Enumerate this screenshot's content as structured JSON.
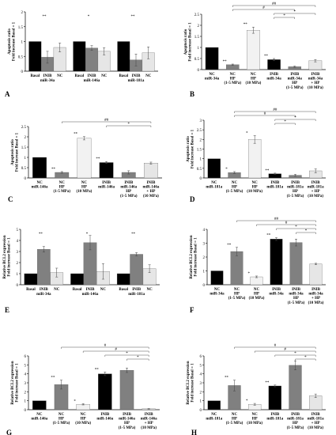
{
  "colors": {
    "black": "#000000",
    "dark": "#808080",
    "mid": "#bdbdbd",
    "light": "#e6e6e6",
    "verylight": "#f2f2f2"
  },
  "panels": [
    {
      "letter": "A",
      "ylabel": [
        "Apoptosis ratio",
        "Fold increase Basal = 1"
      ],
      "chart_data": {
        "type": "bar",
        "ylim": [
          0,
          2
        ],
        "ticks": [
          0,
          0.5,
          1,
          1.5,
          2
        ],
        "groups": [
          {
            "label": [
              "INIB",
              "miR-34a"
            ],
            "cats": [
              "Basal",
              "",
              "NC"
            ],
            "values": [
              1,
              0.47,
              0.8
            ],
            "errs": [
              0,
              0.2,
              0.15
            ],
            "colors": [
              "black",
              "dark",
              "light"
            ],
            "marks": [
              "",
              "**",
              ""
            ]
          },
          {
            "label": [
              "INIB",
              "miR-146a"
            ],
            "cats": [
              "Basal",
              "",
              "NC"
            ],
            "values": [
              1,
              0.78,
              0.67
            ],
            "errs": [
              0,
              0.08,
              0.12
            ],
            "colors": [
              "black",
              "dark",
              "light"
            ],
            "marks": [
              "",
              "*",
              ""
            ]
          },
          {
            "label": [
              "INIB",
              "miR-181a"
            ],
            "cats": [
              "Basal",
              "",
              "NC"
            ],
            "values": [
              1,
              0.38,
              0.62
            ],
            "errs": [
              0,
              0.2,
              0.2
            ],
            "colors": [
              "black",
              "dark",
              "light"
            ],
            "marks": [
              "",
              "**",
              ""
            ]
          }
        ]
      }
    },
    {
      "letter": "B",
      "ylabel": [
        "Apoptosis ratio",
        "Fold increase Basal = 1"
      ],
      "chart_data": {
        "type": "bar",
        "ylim": [
          0,
          2.5
        ],
        "ticks": [
          0,
          0.5,
          1,
          1.5,
          2,
          2.5
        ],
        "categories": [
          [
            "NC",
            "miR-34a"
          ],
          [
            "NC",
            "HP",
            "(1-5 MPa)"
          ],
          [
            "NC",
            "HP",
            "(10 MPa)"
          ],
          [
            "INIB",
            "miR-34a"
          ],
          [
            "INIB",
            "miR-34a",
            "HP",
            "(1-5 MPa)"
          ],
          [
            "INIB",
            "miR-34a",
            "+ HP",
            "(10 MPa)"
          ]
        ],
        "values": [
          1,
          0.22,
          1.78,
          0.45,
          0.13,
          0.4
        ],
        "errs": [
          0,
          0.03,
          0.14,
          0.05,
          0.03,
          0.05
        ],
        "colors": [
          "black",
          "dark",
          "verylight",
          "black",
          "dark",
          "light"
        ],
        "marks": [
          "",
          "**",
          "**",
          "**",
          "",
          ""
        ],
        "brackets": [
          {
            "from": 1,
            "to": 5,
            "level": 2,
            "sym": "##"
          },
          {
            "from": 1,
            "to": 4,
            "level": 1,
            "sym": "#"
          },
          {
            "from": 3,
            "to": 5,
            "level": 0,
            "sym": "*"
          },
          {
            "from": 3,
            "to": 4,
            "level": -1,
            "sym": "*"
          }
        ]
      }
    },
    {
      "letter": "C",
      "ylabel": [
        "Apoptosis ratio",
        "Fold increase Basal = 1"
      ],
      "chart_data": {
        "type": "bar",
        "ylim": [
          0,
          2.5
        ],
        "ticks": [
          0,
          0.5,
          1,
          1.5,
          2,
          2.5
        ],
        "categories": [
          [
            "NC",
            "miR-146a"
          ],
          [
            "NC",
            "HP",
            "(1-5 MPa)"
          ],
          [
            "NC",
            "HP",
            "(10 MPa)"
          ],
          [
            "INIB",
            "miR-146a"
          ],
          [
            "INIB",
            "miR-146a",
            "HP",
            "(1-5 MPa)"
          ],
          [
            "INIB",
            "miR-146a",
            "+ HP",
            "(10 MPa)"
          ]
        ],
        "values": [
          1,
          0.27,
          1.93,
          0.75,
          0.27,
          0.72
        ],
        "errs": [
          0,
          0.04,
          0.08,
          0.05,
          0.08,
          0.05
        ],
        "colors": [
          "black",
          "dark",
          "verylight",
          "black",
          "dark",
          "light"
        ],
        "marks": [
          "",
          "**",
          "**",
          "**",
          "",
          ""
        ],
        "brackets": [
          {
            "from": 1,
            "to": 5,
            "level": 1,
            "sym": "##"
          },
          {
            "from": 3,
            "to": 5,
            "level": 0,
            "sym": "*"
          }
        ]
      }
    },
    {
      "letter": "D",
      "ylabel": [
        "Apoptosis ratio",
        "Fold increase Basal = 1"
      ],
      "chart_data": {
        "type": "bar",
        "ylim": [
          0,
          3
        ],
        "ticks": [
          0,
          0.5,
          1,
          1.5,
          2,
          2.5,
          3
        ],
        "categories": [
          [
            "NC",
            "miR-181a"
          ],
          [
            "NC",
            "HP",
            "(1-5 MPa)"
          ],
          [
            "NC",
            "HP",
            "(10 MPa)"
          ],
          [
            "INIB",
            "miR-181a"
          ],
          [
            "INIB",
            "miR-181a",
            "HP",
            "(1-5 MPa)"
          ],
          [
            "INIB",
            "miR-181a",
            "+ HP",
            "(10 MPa)"
          ]
        ],
        "values": [
          1,
          0.28,
          2.0,
          0.22,
          0.14,
          0.37
        ],
        "errs": [
          0,
          0.05,
          0.2,
          0.03,
          0.05,
          0.1
        ],
        "colors": [
          "black",
          "dark",
          "verylight",
          "black",
          "dark",
          "light"
        ],
        "marks": [
          "",
          "*",
          "*",
          "**",
          "",
          ""
        ],
        "brackets": [
          {
            "from": 1,
            "to": 5,
            "level": 2,
            "sym": "##"
          },
          {
            "from": 1,
            "to": 4,
            "level": 1,
            "sym": "#"
          },
          {
            "from": 3,
            "to": 5,
            "level": 0,
            "sym": "*"
          },
          {
            "from": 3,
            "to": 4,
            "level": -1,
            "sym": "*"
          }
        ]
      }
    },
    {
      "letter": "E",
      "ylabel": [
        "Relative BCL2 expression",
        "Fold increase Basal = 1"
      ],
      "chart_data": {
        "type": "bar",
        "ylim": [
          0,
          5
        ],
        "ticks": [
          0,
          1,
          2,
          3,
          4,
          5
        ],
        "groups": [
          {
            "label": [
              "INIB",
              "miR-34a"
            ],
            "cats": [
              "Basal",
              "",
              "NC"
            ],
            "values": [
              1,
              3.2,
              1.1
            ],
            "errs": [
              0,
              0.25,
              0.4
            ],
            "colors": [
              "black",
              "dark",
              "light"
            ],
            "marks": [
              "",
              "**",
              ""
            ]
          },
          {
            "label": [
              "INIB",
              "miR-146a"
            ],
            "cats": [
              "Basal",
              "",
              "NC"
            ],
            "values": [
              1,
              3.8,
              1.2
            ],
            "errs": [
              0,
              0.65,
              0.7
            ],
            "colors": [
              "black",
              "dark",
              "light"
            ],
            "marks": [
              "",
              "*",
              ""
            ]
          },
          {
            "label": [
              "INIB",
              "miR-181a"
            ],
            "cats": [
              "Basal",
              "",
              "NC"
            ],
            "values": [
              1,
              2.75,
              1.45
            ],
            "errs": [
              0,
              0.15,
              0.35
            ],
            "colors": [
              "black",
              "dark",
              "light"
            ],
            "marks": [
              "",
              "**",
              ""
            ]
          }
        ]
      }
    },
    {
      "letter": "F",
      "ylabel": [
        "Relative BCL2 expression",
        "Fold increase Basal = 1"
      ],
      "chart_data": {
        "type": "bar",
        "ylim": [
          0,
          4
        ],
        "ticks": [
          0,
          1,
          2,
          3,
          4
        ],
        "categories": [
          [
            "NC",
            "miR-34a"
          ],
          [
            "NC",
            "HP",
            "(1-5 MPa)"
          ],
          [
            "NC",
            "HP",
            "(10 MPa)"
          ],
          [
            "INIB",
            "miR-34a"
          ],
          [
            "INIB",
            "miR-34a",
            "HP",
            "(1-5 MPa)"
          ],
          [
            "INIB",
            "miR-34a",
            "+ HP",
            "(10 MPa)"
          ]
        ],
        "values": [
          1,
          2.4,
          0.57,
          3.3,
          3.05,
          1.5
        ],
        "errs": [
          0,
          0.3,
          0.06,
          0.1,
          0.25,
          0.05
        ],
        "colors": [
          "black",
          "dark",
          "verylight",
          "black",
          "dark",
          "light"
        ],
        "marks": [
          "",
          "**",
          "*",
          "**",
          "",
          ""
        ],
        "brackets": [
          {
            "from": 1,
            "to": 5,
            "level": 2,
            "sym": "##"
          },
          {
            "from": 2,
            "to": 5,
            "level": 1,
            "sym": "#"
          },
          {
            "from": 3,
            "to": 5,
            "level": 0,
            "sym": "*"
          },
          {
            "from": 4,
            "to": 5,
            "level": -1,
            "sym": "*"
          }
        ]
      }
    },
    {
      "letter": "G",
      "ylabel": [
        "Relative BCL2 expression",
        "Fold increase Basal = 1"
      ],
      "chart_data": {
        "type": "bar",
        "ylim": [
          0,
          6
        ],
        "ticks": [
          0,
          1,
          2,
          3,
          4,
          5,
          6
        ],
        "categories": [
          [
            "NC",
            "miR-146a"
          ],
          [
            "NC",
            "HP",
            "(1-5 MPa)"
          ],
          [
            "NC",
            "HP",
            "(10 MPa)"
          ],
          [
            "INIB",
            "miR-146a"
          ],
          [
            "INIB",
            "miR-146a",
            "HP",
            "(1-5 MPa)"
          ],
          [
            "INIB",
            "miR-146a",
            "+ HP",
            "(10 MPa)"
          ]
        ],
        "values": [
          1,
          2.8,
          0.6,
          4.0,
          4.4,
          0.1
        ],
        "errs": [
          0,
          0.5,
          0.07,
          0.2,
          0.25,
          0.03
        ],
        "colors": [
          "black",
          "dark",
          "verylight",
          "black",
          "dark",
          "light"
        ],
        "marks": [
          "",
          "**",
          "*",
          "**",
          "",
          ""
        ],
        "brackets": [
          {
            "from": 1,
            "to": 5,
            "level": 2,
            "sym": "#"
          },
          {
            "from": 2,
            "to": 5,
            "level": 1,
            "sym": "#"
          },
          {
            "from": 3,
            "to": 5,
            "level": 0,
            "sym": "*"
          },
          {
            "from": 4,
            "to": 5,
            "level": -1,
            "sym": "*"
          }
        ]
      }
    },
    {
      "letter": "H",
      "ylabel": [
        "Relative BCL2 expression",
        "Fold increase Basal = 1"
      ],
      "chart_data": {
        "type": "bar",
        "ylim": [
          0,
          6
        ],
        "ticks": [
          0,
          1,
          2,
          3,
          4,
          5,
          6
        ],
        "categories": [
          [
            "NC",
            "miR-181a"
          ],
          [
            "NC",
            "HP",
            "(1-5 MPa)"
          ],
          [
            "NC",
            "HP",
            "(10 MPa)"
          ],
          [
            "INIB",
            "miR-181a"
          ],
          [
            "INIB",
            "miR-181a",
            "HP",
            "(1-5 MPa)"
          ],
          [
            "INIB",
            "miR-181a",
            "+ HP",
            "(10 MPa)"
          ]
        ],
        "values": [
          1,
          2.7,
          0.6,
          2.65,
          4.95,
          1.55
        ],
        "errs": [
          0,
          0.6,
          0.1,
          0.1,
          0.5,
          0.2
        ],
        "colors": [
          "black",
          "dark",
          "verylight",
          "black",
          "dark",
          "light"
        ],
        "marks": [
          "",
          "**",
          "*",
          "**",
          "",
          ""
        ],
        "brackets": [
          {
            "from": 1,
            "to": 5,
            "level": 2,
            "sym": "#"
          },
          {
            "from": 2,
            "to": 5,
            "level": 1,
            "sym": "#"
          },
          {
            "from": 3,
            "to": 5,
            "level": 0,
            "sym": "*"
          },
          {
            "from": 4,
            "to": 5,
            "level": -1,
            "sym": "*"
          }
        ]
      }
    }
  ]
}
